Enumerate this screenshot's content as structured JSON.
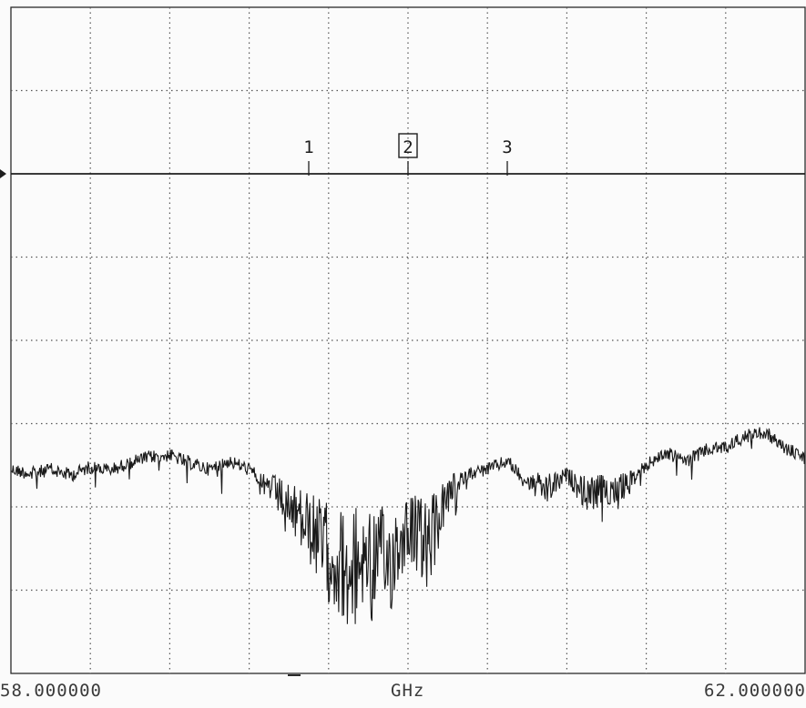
{
  "chart_data": {
    "type": "line",
    "x_unit": "GHz",
    "x_start_label": "58.000000",
    "x_end_label": "62.000000",
    "xlim": [
      58.0,
      62.0
    ],
    "grid": true,
    "grid_divisions": {
      "x": 10,
      "y": 8
    },
    "reference_line_division": 2,
    "markers": [
      {
        "label": "1",
        "x": 59.5,
        "boxed": false
      },
      {
        "label": "2",
        "x": 60.0,
        "boxed": true
      },
      {
        "label": "3",
        "x": 60.5,
        "boxed": false
      }
    ],
    "series": [
      {
        "points_divisions": [
          [
            0.0,
            5.55
          ],
          [
            0.25,
            5.6
          ],
          [
            0.5,
            5.55
          ],
          [
            0.75,
            5.62
          ],
          [
            1.0,
            5.52
          ],
          [
            1.25,
            5.56
          ],
          [
            1.5,
            5.47
          ],
          [
            1.75,
            5.4
          ],
          [
            2.0,
            5.38
          ],
          [
            2.25,
            5.47
          ],
          [
            2.5,
            5.55
          ],
          [
            2.75,
            5.45
          ],
          [
            3.0,
            5.55
          ],
          [
            3.25,
            5.75
          ],
          [
            3.5,
            6.0
          ],
          [
            3.75,
            6.25
          ],
          [
            4.0,
            6.55
          ],
          [
            4.25,
            6.75
          ],
          [
            4.5,
            6.55
          ],
          [
            4.75,
            6.7
          ],
          [
            5.0,
            6.2
          ],
          [
            5.25,
            6.5
          ],
          [
            5.5,
            5.85
          ],
          [
            5.75,
            5.6
          ],
          [
            6.0,
            5.55
          ],
          [
            6.25,
            5.45
          ],
          [
            6.5,
            5.7
          ],
          [
            6.75,
            5.8
          ],
          [
            7.0,
            5.62
          ],
          [
            7.25,
            5.85
          ],
          [
            7.5,
            5.8
          ],
          [
            7.75,
            5.75
          ],
          [
            8.0,
            5.5
          ],
          [
            8.25,
            5.35
          ],
          [
            8.5,
            5.45
          ],
          [
            8.75,
            5.32
          ],
          [
            9.0,
            5.28
          ],
          [
            9.25,
            5.15
          ],
          [
            9.5,
            5.1
          ],
          [
            9.75,
            5.3
          ],
          [
            10.0,
            5.4
          ]
        ]
      }
    ]
  }
}
